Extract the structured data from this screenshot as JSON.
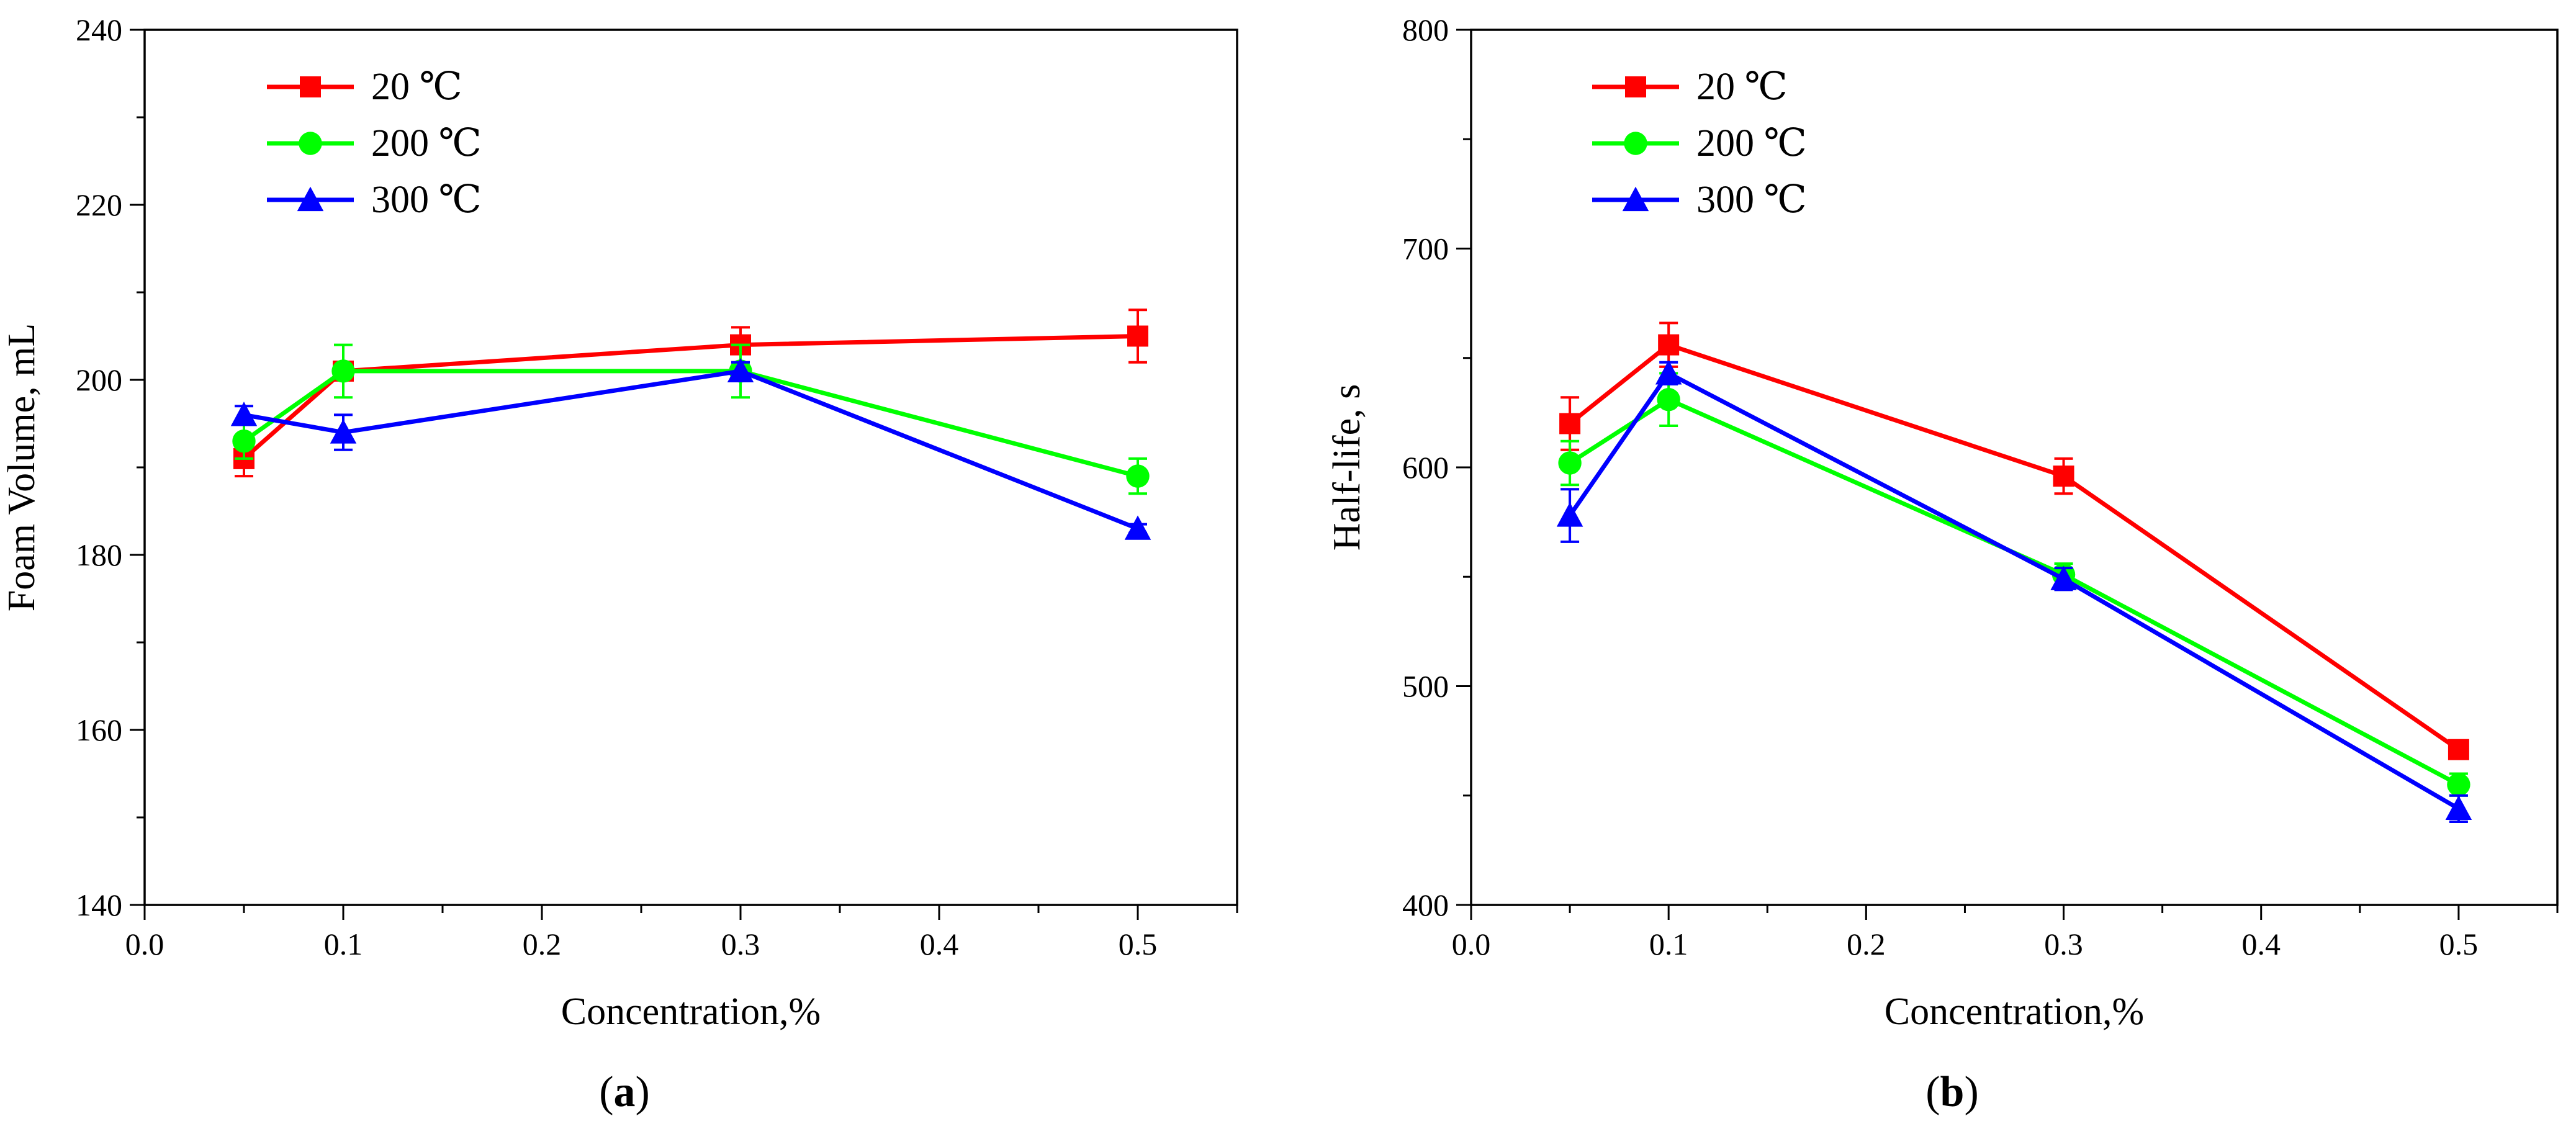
{
  "figure": {
    "panels": [
      "(a)",
      "(b)"
    ]
  },
  "chart_data": [
    {
      "type": "line",
      "panel_label": "(a)",
      "panel_letter": "a",
      "xlabel": "Concentration,%",
      "ylabel": "Foam Volume, mL",
      "xlim": [
        0.0,
        0.55
      ],
      "ylim": [
        140,
        240
      ],
      "xticks": [
        0.0,
        0.1,
        0.2,
        0.3,
        0.4,
        0.5
      ],
      "xtick_labels": [
        "0.0",
        "0.1",
        "0.2",
        "0.3",
        "0.4",
        "0.5"
      ],
      "yticks": [
        140,
        160,
        180,
        200,
        220,
        240
      ],
      "ytick_labels": [
        "140",
        "160",
        "180",
        "200",
        "220",
        "240"
      ],
      "grid": false,
      "legend_position": "top-left",
      "x": [
        0.05,
        0.1,
        0.3,
        0.5
      ],
      "series": [
        {
          "name": "20 ℃",
          "color": "#ff0000",
          "marker": "square",
          "values": [
            191,
            201,
            204,
            205
          ],
          "errors": [
            2,
            1,
            2,
            3
          ]
        },
        {
          "name": "200 ℃",
          "color": "#00ff00",
          "marker": "circle",
          "values": [
            193,
            201,
            201,
            189
          ],
          "errors": [
            2,
            3,
            3,
            2
          ]
        },
        {
          "name": "300 ℃",
          "color": "#0000ff",
          "marker": "triangle",
          "values": [
            196,
            194,
            201,
            183
          ],
          "errors": [
            1,
            2,
            1,
            0.5
          ]
        }
      ]
    },
    {
      "type": "line",
      "panel_label": "(b)",
      "panel_letter": "b",
      "xlabel": "Concentration,%",
      "ylabel": "Half-life, s",
      "xlim": [
        0.0,
        0.55
      ],
      "ylim": [
        400,
        800
      ],
      "xticks": [
        0.0,
        0.1,
        0.2,
        0.3,
        0.4,
        0.5
      ],
      "xtick_labels": [
        "0.0",
        "0.1",
        "0.2",
        "0.3",
        "0.4",
        "0.5"
      ],
      "yticks": [
        400,
        500,
        600,
        700,
        800
      ],
      "ytick_labels": [
        "400",
        "500",
        "600",
        "700",
        "800"
      ],
      "grid": false,
      "legend_position": "top-left",
      "x": [
        0.05,
        0.1,
        0.3,
        0.5
      ],
      "series": [
        {
          "name": "20 ℃",
          "color": "#ff0000",
          "marker": "square",
          "values": [
            620,
            656,
            596,
            471
          ],
          "errors": [
            12,
            10,
            8,
            3
          ]
        },
        {
          "name": "200 ℃",
          "color": "#00ff00",
          "marker": "circle",
          "values": [
            602,
            631,
            551,
            455
          ],
          "errors": [
            10,
            12,
            5,
            5
          ]
        },
        {
          "name": "300 ℃",
          "color": "#0000ff",
          "marker": "triangle",
          "values": [
            578,
            643,
            549,
            444
          ],
          "errors": [
            12,
            5,
            5,
            6
          ]
        }
      ]
    }
  ]
}
